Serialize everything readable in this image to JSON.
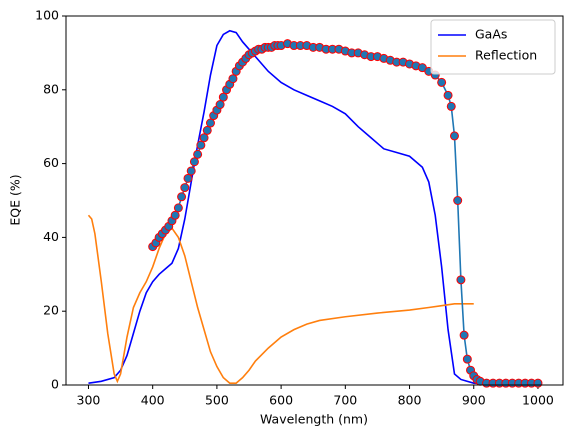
{
  "chart_data": {
    "type": "line",
    "x_label": "Wavelength (nm)",
    "y_label": "EQE (%)",
    "xlim": [
      265,
      1039
    ],
    "ylim": [
      0,
      100
    ],
    "xticks": [
      300,
      400,
      500,
      600,
      700,
      800,
      900,
      1000
    ],
    "yticks": [
      0,
      20,
      40,
      60,
      80,
      100
    ],
    "legend": "upper right",
    "series": [
      {
        "name": "GaAs",
        "color": "#0000ff",
        "x": [
          300,
          320,
          340,
          350,
          360,
          370,
          380,
          390,
          400,
          410,
          420,
          430,
          440,
          450,
          460,
          470,
          480,
          490,
          500,
          510,
          520,
          530,
          540,
          550,
          560,
          570,
          580,
          600,
          620,
          640,
          660,
          680,
          700,
          720,
          740,
          760,
          780,
          800,
          820,
          830,
          840,
          850,
          860,
          870,
          880,
          900,
          950,
          1000
        ],
        "values": [
          0.5,
          1,
          2,
          4,
          8,
          14,
          20,
          25,
          28,
          30,
          31.5,
          33,
          37,
          45,
          55,
          65,
          74,
          84,
          92,
          95,
          96,
          95.5,
          93,
          91,
          89,
          87,
          85,
          82,
          80,
          78.5,
          77,
          75.5,
          73.5,
          70,
          67,
          64,
          63,
          62,
          59,
          55,
          46,
          32,
          15,
          3,
          1.5,
          0.5,
          0.3,
          0.2
        ]
      },
      {
        "name": "Reflection",
        "color": "#ff7f0e",
        "x": [
          300,
          305,
          310,
          320,
          330,
          340,
          345,
          350,
          360,
          370,
          380,
          390,
          400,
          410,
          420,
          430,
          440,
          450,
          460,
          470,
          480,
          490,
          500,
          510,
          520,
          530,
          540,
          550,
          560,
          580,
          600,
          620,
          640,
          660,
          700,
          750,
          800,
          830,
          850,
          870,
          900
        ],
        "values": [
          46,
          45,
          41,
          28,
          14,
          3,
          1,
          3,
          13,
          21,
          25,
          28,
          32,
          37,
          41,
          42.5,
          40,
          35,
          28,
          21,
          15,
          9,
          5,
          2,
          0.5,
          0.5,
          2,
          4,
          6.5,
          10,
          13,
          15,
          16.5,
          17.5,
          18.5,
          19.5,
          20.3,
          21,
          21.5,
          22,
          22
        ]
      },
      {
        "color": "#1f77b4",
        "marker": true,
        "marker_edge": "#ff0000",
        "x": [
          400,
          405,
          410,
          415,
          420,
          425,
          430,
          435,
          440,
          445,
          450,
          455,
          460,
          465,
          470,
          475,
          480,
          485,
          490,
          495,
          500,
          505,
          510,
          515,
          520,
          525,
          530,
          535,
          540,
          545,
          550,
          555,
          560,
          565,
          570,
          575,
          580,
          585,
          590,
          595,
          600,
          610,
          620,
          630,
          640,
          650,
          660,
          670,
          680,
          690,
          700,
          710,
          720,
          730,
          740,
          750,
          760,
          770,
          780,
          790,
          800,
          810,
          820,
          830,
          840,
          850,
          860,
          865,
          870,
          875,
          880,
          885,
          890,
          895,
          900,
          905,
          910,
          920,
          930,
          940,
          950,
          960,
          970,
          980,
          990,
          1000
        ],
        "values": [
          37.5,
          38.5,
          40,
          41,
          42,
          43,
          44.5,
          46,
          48,
          51,
          53.5,
          56,
          58,
          60.5,
          62.5,
          65,
          67,
          69,
          71,
          73,
          74.5,
          76,
          78,
          80,
          81.5,
          83,
          85,
          86.5,
          87.5,
          88.5,
          89.5,
          90,
          90.5,
          91,
          91,
          91.5,
          91.5,
          91.5,
          92,
          92,
          92,
          92.5,
          92,
          92,
          92,
          91.5,
          91.5,
          91,
          91,
          91,
          90.5,
          90,
          90,
          89.5,
          89,
          89,
          88.5,
          88,
          87.5,
          87.5,
          87,
          86.5,
          86,
          85,
          84,
          82,
          78.5,
          75.5,
          67.5,
          50,
          28.5,
          13.5,
          7,
          4,
          2.5,
          1.5,
          1,
          0.5,
          0.5,
          0.5,
          0.5,
          0.5,
          0.5,
          0.5,
          0.5,
          0.5
        ]
      }
    ]
  }
}
